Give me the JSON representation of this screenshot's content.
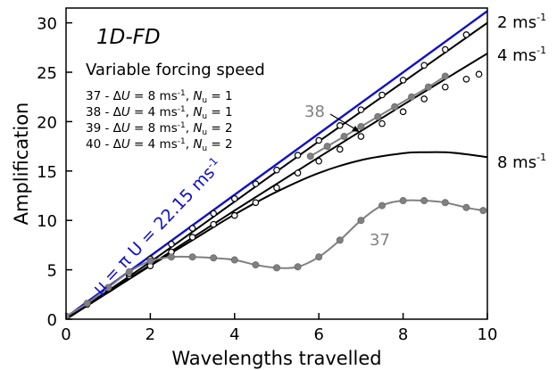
{
  "chart_data": {
    "type": "line",
    "title": "1D-FD",
    "subtitle": "Variable forcing speed",
    "xlabel": "Wavelengths travelled",
    "ylabel": "Amplification",
    "xlim": [
      0,
      10
    ],
    "ylim": [
      0,
      31.5
    ],
    "xticks": [
      0,
      2,
      4,
      6,
      8,
      10
    ],
    "yticks": [
      0,
      5,
      10,
      15,
      20,
      25,
      30
    ],
    "grid": false,
    "colors": {
      "blue": "#1010cc",
      "black": "#000000",
      "gray": "#808080",
      "open_marker": "#ffffff"
    },
    "legend_lines": [
      {
        "id": "37",
        "du": "8",
        "nu": "1"
      },
      {
        "id": "38",
        "du": "4",
        "nu": "1"
      },
      {
        "id": "39",
        "du": "8",
        "nu": "2"
      },
      {
        "id": "40",
        "du": "4",
        "nu": "2"
      }
    ],
    "legend_symbols": {
      "delta": "Δ",
      "u_italic": "U",
      "unit": "ms",
      "unit_exp": "-1",
      "n_italic": "N",
      "n_sub": "u"
    },
    "blue_annotation": {
      "mu_text": "μ = π",
      "speed_text": "U = 22.15 ms",
      "speed_exp": "-1"
    },
    "right_labels": [
      {
        "text": "2 ms",
        "exp": "-1"
      },
      {
        "text": "4 ms",
        "exp": "-1"
      },
      {
        "text": "8 ms",
        "exp": "-1"
      }
    ],
    "callouts": {
      "run38": "38",
      "run37": "37"
    },
    "series": [
      {
        "style": "blue-line",
        "x": [
          0,
          10.1
        ],
        "y": [
          0.2,
          31.5
        ]
      },
      {
        "style": "black-line",
        "x": [
          0,
          2,
          4,
          6,
          8,
          10
        ],
        "y": [
          0,
          5.8,
          11.9,
          18.0,
          24.0,
          30.0
        ]
      },
      {
        "style": "black-line",
        "x": [
          0,
          2,
          4,
          6,
          8,
          10
        ],
        "y": [
          0,
          5.5,
          11.0,
          16.4,
          21.7,
          26.9
        ]
      },
      {
        "style": "black-line",
        "x": [
          0,
          1,
          2,
          3,
          4,
          5,
          6,
          7,
          8,
          8.5,
          9,
          9.5,
          10
        ],
        "y": [
          0,
          2.7,
          5.4,
          8.0,
          10.6,
          12.9,
          14.8,
          16.1,
          16.8,
          16.9,
          16.9,
          16.7,
          16.4
        ]
      },
      {
        "name": "37",
        "style": "gray-filled",
        "x": [
          0,
          0.5,
          1,
          1.5,
          2,
          2.5,
          3,
          3.5,
          4,
          4.5,
          5,
          5.5,
          6,
          6.5,
          7,
          7.5,
          8,
          8.5,
          9,
          9.5,
          9.9
        ],
        "y": [
          0.3,
          1.6,
          3.2,
          4.8,
          5.9,
          6.3,
          6.3,
          6.2,
          6.0,
          5.5,
          5.2,
          5.3,
          6.3,
          8.0,
          10.0,
          11.5,
          12.0,
          12.0,
          11.8,
          11.3,
          11.0
        ]
      },
      {
        "name": "38",
        "style": "gray-filled",
        "x": [
          5.8,
          6.2,
          6.6,
          7,
          7.4,
          7.8,
          8.2,
          8.6,
          9.0
        ],
        "y": [
          16.5,
          17.5,
          18.5,
          19.5,
          20.5,
          21.5,
          22.5,
          23.5,
          24.6
        ]
      },
      {
        "name": "39",
        "style": "open-circle",
        "x": [
          0,
          0.5,
          1,
          1.5,
          2,
          2.5,
          3,
          3.5,
          4,
          4.5,
          5,
          5.5,
          6,
          6.5,
          7,
          7.5,
          8,
          8.5,
          9,
          9.5,
          9.8
        ],
        "y": [
          0.3,
          1.5,
          3.0,
          4.4,
          5.4,
          6.8,
          8.3,
          9.6,
          10.5,
          11.8,
          13.3,
          14.8,
          16.0,
          17.2,
          18.5,
          19.8,
          21.0,
          22.3,
          23.5,
          24.3,
          24.8
        ]
      },
      {
        "name": "40",
        "style": "open-circle",
        "x": [
          0,
          0.5,
          1,
          1.5,
          2,
          2.5,
          3,
          3.5,
          4,
          4.5,
          5,
          5.5,
          6,
          6.5,
          7,
          7.5,
          8,
          8.5,
          9,
          9.5
        ],
        "y": [
          0.3,
          1.6,
          3.1,
          4.6,
          6.1,
          7.6,
          9.2,
          10.7,
          12.2,
          13.7,
          15.1,
          16.6,
          18.1,
          19.6,
          21.2,
          22.7,
          24.2,
          25.7,
          27.3,
          28.8
        ]
      }
    ]
  }
}
